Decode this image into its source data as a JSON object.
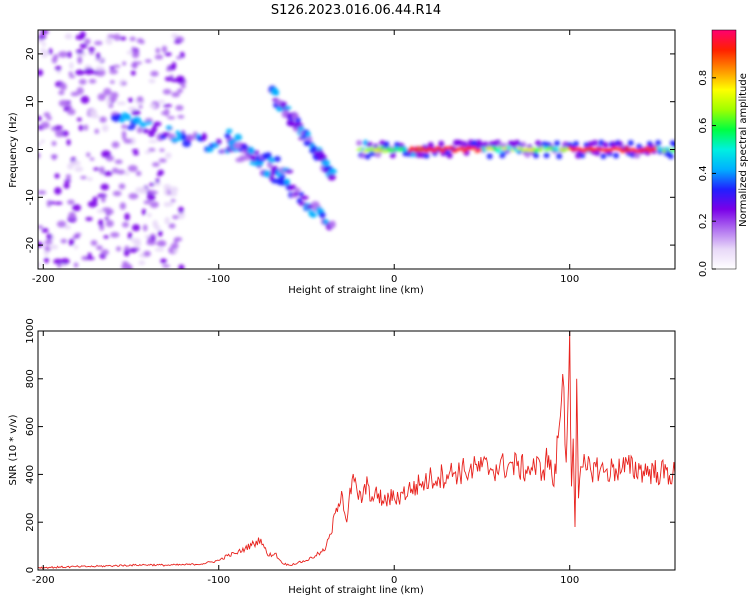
{
  "title": "S126.2023.016.06.44.R14",
  "chart_data": [
    {
      "type": "heatmap",
      "xlabel": "Height of straight line (km)",
      "ylabel": "Frequency (Hz)",
      "xlim": [
        -203,
        160
      ],
      "ylim": [
        -25,
        25
      ],
      "x_ticks": [
        -200,
        -100,
        0,
        100
      ],
      "y_ticks": [
        20,
        10,
        0,
        -10,
        -20
      ],
      "colorbar": {
        "label": "Normalized spectral amplitude",
        "range": [
          0,
          1
        ],
        "ticks": [
          "0.0",
          "0.2",
          "0.4",
          "0.6",
          "0.8"
        ],
        "colors": [
          "#ffffff",
          "#e8d8f8",
          "#b070f0",
          "#7a00e8",
          "#2020ff",
          "#00b0ff",
          "#00f0e0",
          "#00ff40",
          "#a0ff00",
          "#ffff00",
          "#ff9000",
          "#ff2000",
          "#ff0070"
        ]
      },
      "features": {
        "central_line": {
          "x_from": -20,
          "x_to": 160,
          "frequency_hz": 0,
          "peak_amplitude": 0.9
        },
        "descending_streaks": [
          {
            "x_from": -70,
            "x_to": -35,
            "frequency_from": 12,
            "frequency_to": -5
          },
          {
            "x_from": -95,
            "x_to": -35,
            "frequency_from": 3,
            "frequency_to": -16
          },
          {
            "x_from": -160,
            "x_to": -60,
            "frequency_from": 7,
            "frequency_to": -4
          }
        ],
        "noise_region": {
          "x_from": -203,
          "x_to": -120,
          "frequency_from": -25,
          "frequency_to": 25
        }
      }
    },
    {
      "type": "line",
      "xlabel": "Height of straight line (km)",
      "ylabel": "SNR (10 * v/v)",
      "xlim": [
        -203,
        160
      ],
      "ylim": [
        0,
        1000
      ],
      "x_ticks": [
        -200,
        -100,
        0,
        100
      ],
      "y_ticks": [
        0,
        200,
        400,
        600,
        800,
        1000
      ],
      "color": "#e8231e",
      "series": [
        {
          "x": [
            -203,
            -190,
            -180,
            -170,
            -160,
            -150,
            -140,
            -130,
            -120,
            -110,
            -100,
            -95,
            -90,
            -85,
            -80,
            -76,
            -72,
            -68,
            -64,
            -60,
            -55,
            -50,
            -45,
            -40,
            -36,
            -33,
            -30,
            -27,
            -24,
            -21,
            -18,
            -15,
            -12,
            -9,
            -6,
            -3,
            0,
            5,
            10,
            15,
            20,
            25,
            30,
            35,
            40,
            45,
            50,
            55,
            60,
            65,
            70,
            75,
            80,
            85,
            88,
            91,
            94,
            96,
            98,
            99,
            100,
            101,
            102,
            103,
            104,
            105,
            107,
            110,
            115,
            120,
            130,
            140,
            150,
            160
          ],
          "y": [
            10,
            12,
            14,
            15,
            18,
            20,
            22,
            20,
            22,
            25,
            40,
            60,
            70,
            90,
            110,
            130,
            60,
            70,
            30,
            20,
            30,
            40,
            60,
            80,
            150,
            260,
            330,
            200,
            380,
            320,
            300,
            360,
            290,
            320,
            280,
            300,
            300,
            320,
            340,
            360,
            380,
            390,
            400,
            410,
            415,
            420,
            430,
            425,
            430,
            440,
            435,
            420,
            430,
            420,
            480,
            350,
            600,
            820,
            450,
            700,
            1000,
            350,
            550,
            180,
            800,
            300,
            430,
            420,
            430,
            410,
            430,
            420,
            410,
            400
          ]
        }
      ]
    }
  ]
}
